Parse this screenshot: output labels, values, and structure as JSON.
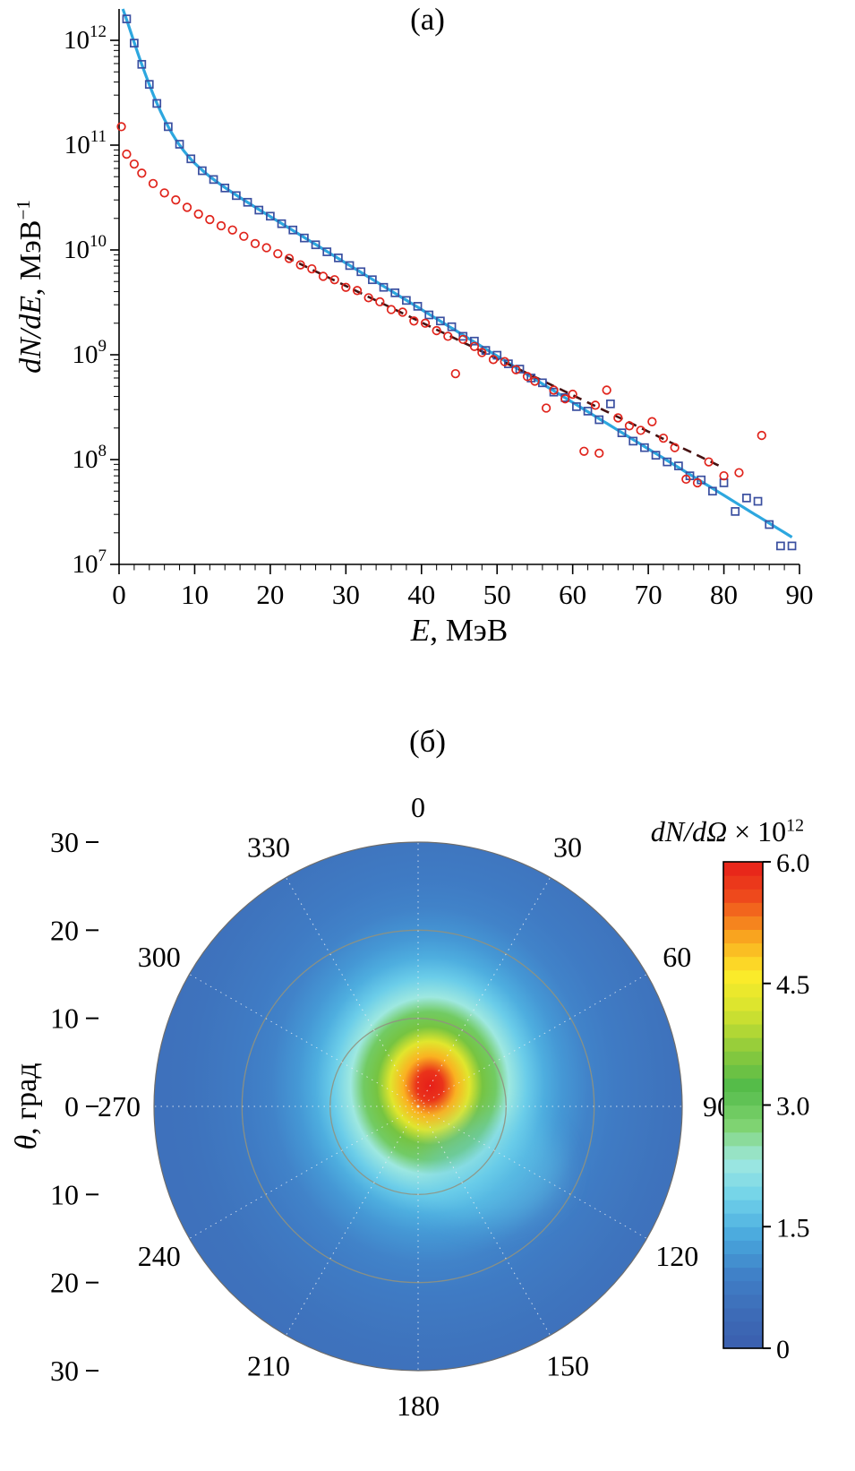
{
  "chart_data": [
    {
      "type": "scatter",
      "panel": "a",
      "labels": {
        "title": "(а)",
        "xlabel_var": "E",
        "xlabel_rest": ", МэВ",
        "ylabel_var": "dN/dE",
        "ylabel_rest": ", МэВ",
        "ylabel_sup": "−1"
      },
      "xlim": [
        0,
        90
      ],
      "x_ticks": [
        0,
        10,
        20,
        30,
        40,
        50,
        60,
        70,
        80,
        90
      ],
      "x_minor_step": 2,
      "y_scale": "log",
      "y_ticks_exponents": [
        7,
        8,
        9,
        10,
        11,
        12
      ],
      "ylim": [
        10000000.0,
        2000000000000.0
      ],
      "series": [
        {
          "name": "fit-line-blue",
          "style": "solid",
          "color": "#2da7df",
          "width": 3.2,
          "x_range": [
            0.5,
            89
          ],
          "model": {
            "A1": 2500000000000.0,
            "T1": 1.8,
            "A2": 160000000000.0,
            "T2": 9.8
          }
        },
        {
          "name": "fit-line-dark-dashed",
          "style": "dashed",
          "color": "#471212",
          "width": 2.6,
          "x_range": [
            22,
            80
          ],
          "model": {
            "A1": 50000000000.0,
            "T1": 2.5,
            "A2": 50000000000.0,
            "T2": 12.5
          }
        },
        {
          "name": "squares-blue",
          "marker": "square",
          "color": "#3a4fa0",
          "points": [
            [
              1,
              1600000000000.0
            ],
            [
              2,
              940000000000.0
            ],
            [
              3,
              590000000000.0
            ],
            [
              4,
              380000000000.0
            ],
            [
              5,
              250000000000.0
            ],
            [
              6.5,
              150000000000.0
            ],
            [
              8,
              102000000000.0
            ],
            [
              9.5,
              74000000000.0
            ],
            [
              11,
              57000000000.0
            ],
            [
              12.5,
              47000000000.0
            ],
            [
              14,
              39000000000.0
            ],
            [
              15.5,
              33000000000.0
            ],
            [
              17,
              28500000000.0
            ],
            [
              18.5,
              24000000000.0
            ],
            [
              20,
              21000000000.0
            ],
            [
              21.5,
              17800000000.0
            ],
            [
              23,
              15500000000.0
            ],
            [
              24.5,
              13000000000.0
            ],
            [
              26,
              11200000000.0
            ],
            [
              27.5,
              9600000000.0
            ],
            [
              29,
              8400000000.0
            ],
            [
              30.5,
              7100000000.0
            ],
            [
              32,
              6200000000.0
            ],
            [
              33.5,
              5200000000.0
            ],
            [
              35,
              4400000000.0
            ],
            [
              36.5,
              3900000000.0
            ],
            [
              38,
              3300000000.0
            ],
            [
              39.5,
              2900000000.0
            ],
            [
              41,
              2400000000.0
            ],
            [
              42.5,
              2100000000.0
            ],
            [
              44,
              1850000000.0
            ],
            [
              45.5,
              1500000000.0
            ],
            [
              47,
              1350000000.0
            ],
            [
              48.5,
              1100000000.0
            ],
            [
              50,
              990000000.0
            ],
            [
              51.5,
              820000000.0
            ],
            [
              53,
              730000000.0
            ],
            [
              54.5,
              600000000.0
            ],
            [
              56,
              540000000.0
            ],
            [
              57.5,
              440000000.0
            ],
            [
              59,
              390000000.0
            ],
            [
              60.5,
              320000000.0
            ],
            [
              62,
              290000000.0
            ],
            [
              63.5,
              240000000.0
            ],
            [
              65,
              340000000.0
            ],
            [
              66.5,
              180000000.0
            ],
            [
              68,
              150000000.0
            ],
            [
              69.5,
              130000000.0
            ],
            [
              71,
              110000000.0
            ],
            [
              72.5,
              95000000.0
            ],
            [
              74,
              87000000.0
            ],
            [
              75.5,
              70000000.0
            ],
            [
              77,
              64000000.0
            ],
            [
              78.5,
              50000000.0
            ],
            [
              80,
              60000000.0
            ],
            [
              81.5,
              32000000.0
            ],
            [
              83,
              43000000.0
            ],
            [
              84.5,
              40000000.0
            ],
            [
              86,
              24000000.0
            ],
            [
              87.5,
              15000000.0
            ],
            [
              89,
              15000000.0
            ]
          ]
        },
        {
          "name": "circles-red",
          "marker": "circle",
          "color": "#e0241c",
          "points": [
            [
              0.3,
              150000000000.0
            ],
            [
              1,
              82000000000.0
            ],
            [
              2,
              66000000000.0
            ],
            [
              3,
              54000000000.0
            ],
            [
              4.5,
              43000000000.0
            ],
            [
              6,
              35000000000.0
            ],
            [
              7.5,
              30000000000.0
            ],
            [
              9,
              25500000000.0
            ],
            [
              10.5,
              22000000000.0
            ],
            [
              12,
              19500000000.0
            ],
            [
              13.5,
              17000000000.0
            ],
            [
              15,
              15500000000.0
            ],
            [
              16.5,
              13500000000.0
            ],
            [
              18,
              11500000000.0
            ],
            [
              19.5,
              10500000000.0
            ],
            [
              21,
              9200000000.0
            ],
            [
              22.5,
              8300000000.0
            ],
            [
              24,
              7200000000.0
            ],
            [
              25.5,
              6600000000.0
            ],
            [
              27,
              5600000000.0
            ],
            [
              28.5,
              5200000000.0
            ],
            [
              30,
              4400000000.0
            ],
            [
              31.5,
              4100000000.0
            ],
            [
              33,
              3500000000.0
            ],
            [
              34.5,
              3200000000.0
            ],
            [
              36,
              2700000000.0
            ],
            [
              37.5,
              2550000000.0
            ],
            [
              39,
              2100000000.0
            ],
            [
              40.5,
              2000000000.0
            ],
            [
              42,
              1700000000.0
            ],
            [
              43.5,
              1500000000.0
            ],
            [
              44.5,
              660000000.0
            ],
            [
              45.5,
              1400000000.0
            ],
            [
              47,
              1200000000.0
            ],
            [
              48,
              1050000000.0
            ],
            [
              49.5,
              900000000.0
            ],
            [
              51,
              860000000.0
            ],
            [
              52.5,
              720000000.0
            ],
            [
              54,
              620000000.0
            ],
            [
              55,
              560000000.0
            ],
            [
              56.5,
              310000000.0
            ],
            [
              57.5,
              460000000.0
            ],
            [
              59,
              380000000.0
            ],
            [
              60,
              420000000.0
            ],
            [
              61.5,
              120000000.0
            ],
            [
              63,
              330000000.0
            ],
            [
              63.5,
              115000000.0
            ],
            [
              64.5,
              460000000.0
            ],
            [
              66,
              250000000.0
            ],
            [
              67.5,
              210000000.0
            ],
            [
              69,
              190000000.0
            ],
            [
              70.5,
              230000000.0
            ],
            [
              72,
              160000000.0
            ],
            [
              73.5,
              130000000.0
            ],
            [
              75,
              65000000.0
            ],
            [
              76.5,
              60000000.0
            ],
            [
              78,
              95000000.0
            ],
            [
              80,
              70000000.0
            ],
            [
              82,
              75000000.0
            ],
            [
              85,
              170000000.0
            ]
          ]
        }
      ]
    },
    {
      "type": "heatmap",
      "panel": "b",
      "projection": "polar",
      "labels": {
        "title": "(б)",
        "radial_var": "θ",
        "radial_rest": ", град",
        "colorbar_var": "dN/dΩ",
        "colorbar_mid": " × 10",
        "colorbar_sup": "12"
      },
      "azimuth_labels_deg": [
        "0",
        "30",
        "60",
        "90",
        "120",
        "150",
        "180",
        "210",
        "240",
        "270",
        "300",
        "330"
      ],
      "radial_ticks_deg": [
        "30",
        "20",
        "10",
        "0",
        "10",
        "20",
        "30"
      ],
      "radial_max_deg": 30,
      "grid": {
        "circles_deg": [
          10,
          20
        ],
        "spokes_every_deg": 30
      },
      "hotspot": {
        "peak_value": 6.0,
        "theta_offset_deg": 2.7,
        "azimuth_offset_deg": 30
      },
      "radial_profile": [
        [
          0,
          6.0
        ],
        [
          1.5,
          5.8
        ],
        [
          3,
          5.0
        ],
        [
          4.5,
          4.3
        ],
        [
          6,
          3.5
        ],
        [
          7.5,
          2.9
        ],
        [
          9,
          2.3
        ],
        [
          11,
          1.8
        ],
        [
          13,
          1.45
        ],
        [
          15,
          1.2
        ],
        [
          18,
          0.95
        ],
        [
          21,
          0.8
        ],
        [
          24,
          0.7
        ],
        [
          27,
          0.62
        ],
        [
          30,
          0.58
        ]
      ],
      "colorbar": {
        "min": 0,
        "max": 6.0,
        "tick_values": [
          0,
          1.5,
          3.0,
          4.5,
          6.0
        ],
        "tick_labels": [
          "0",
          "1.5",
          "3.0",
          "4.5",
          "6.0"
        ],
        "colormap": [
          "#3a5fae",
          "#3d6cb8",
          "#4081c8",
          "#49a8dd",
          "#6fd1ea",
          "#9fe8e0",
          "#7ed26d",
          "#52bb4a",
          "#8fcb3b",
          "#d4e32f",
          "#fdec2a",
          "#f9a51f",
          "#ef4e1c",
          "#e61e19"
        ]
      }
    }
  ]
}
